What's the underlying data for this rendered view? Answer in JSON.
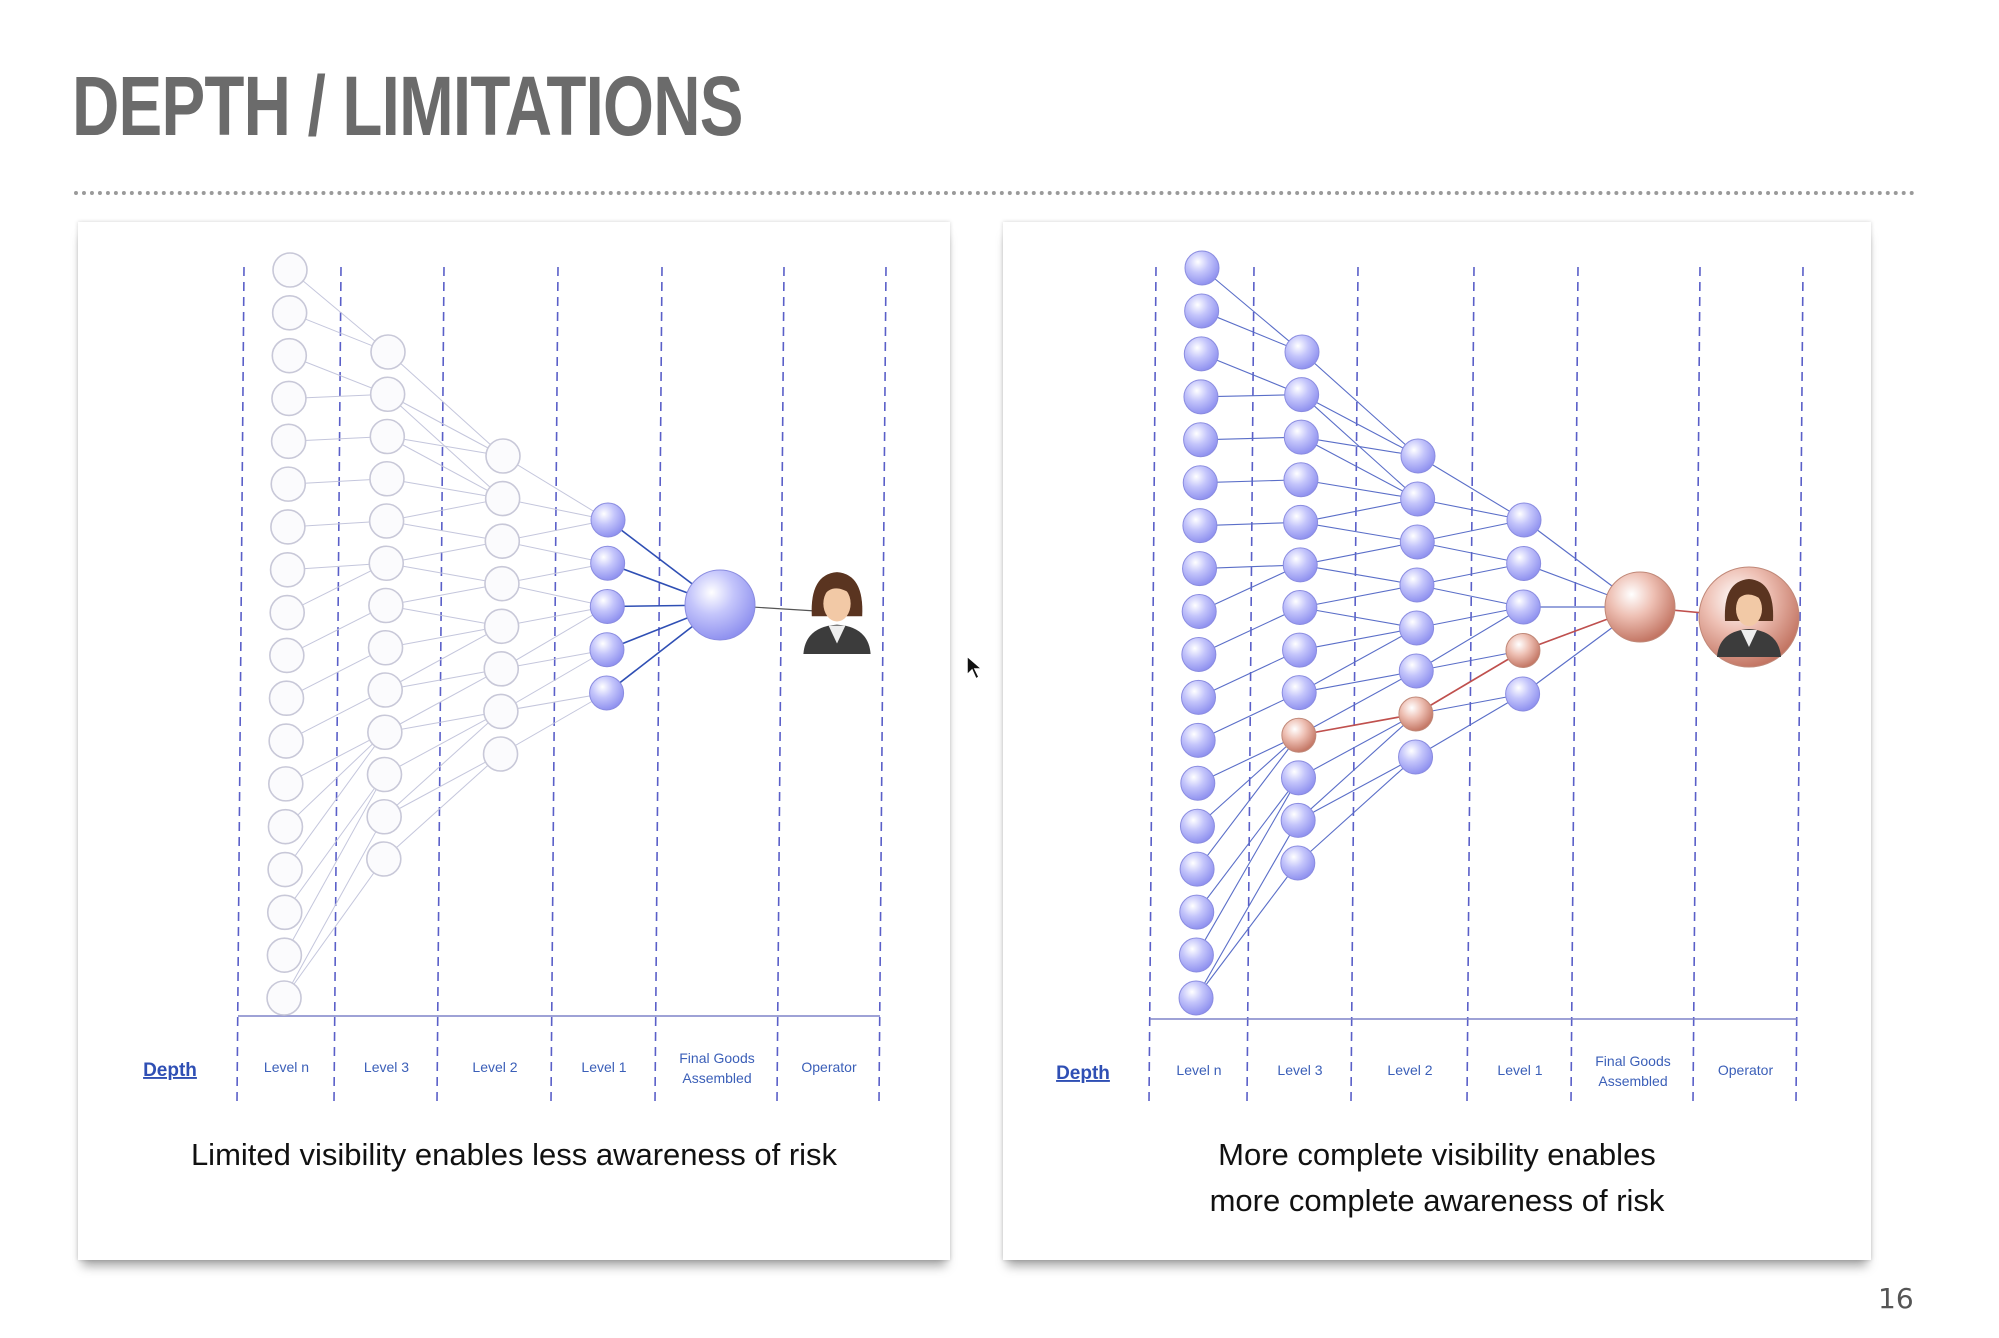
{
  "slide": {
    "title": "DEPTH / LIMITATIONS",
    "page_number": "16"
  },
  "left_diagram": {
    "depth_label": "Depth",
    "columns": [
      "Level n",
      "Level 3",
      "Level 2",
      "Level 1",
      "Final Goods Assembled",
      "Operator"
    ],
    "caption": "Limited visibility enables less awareness of risk"
  },
  "right_diagram": {
    "depth_label": "Depth",
    "columns": [
      "Level n",
      "Level 3",
      "Level 2",
      "Level 1",
      "Final Goods Assembled",
      "Operator"
    ],
    "caption_line1": "More complete visibility enables",
    "caption_line2": "more complete awareness of risk"
  },
  "colors": {
    "visible_node": "#a9aaf5",
    "hidden_node_outline": "#c8c8d8",
    "risk_node": "#e0a090",
    "risk_link": "#c0504d",
    "divider": "#5a5fc8",
    "depth_link": "#2f4fb4"
  }
}
